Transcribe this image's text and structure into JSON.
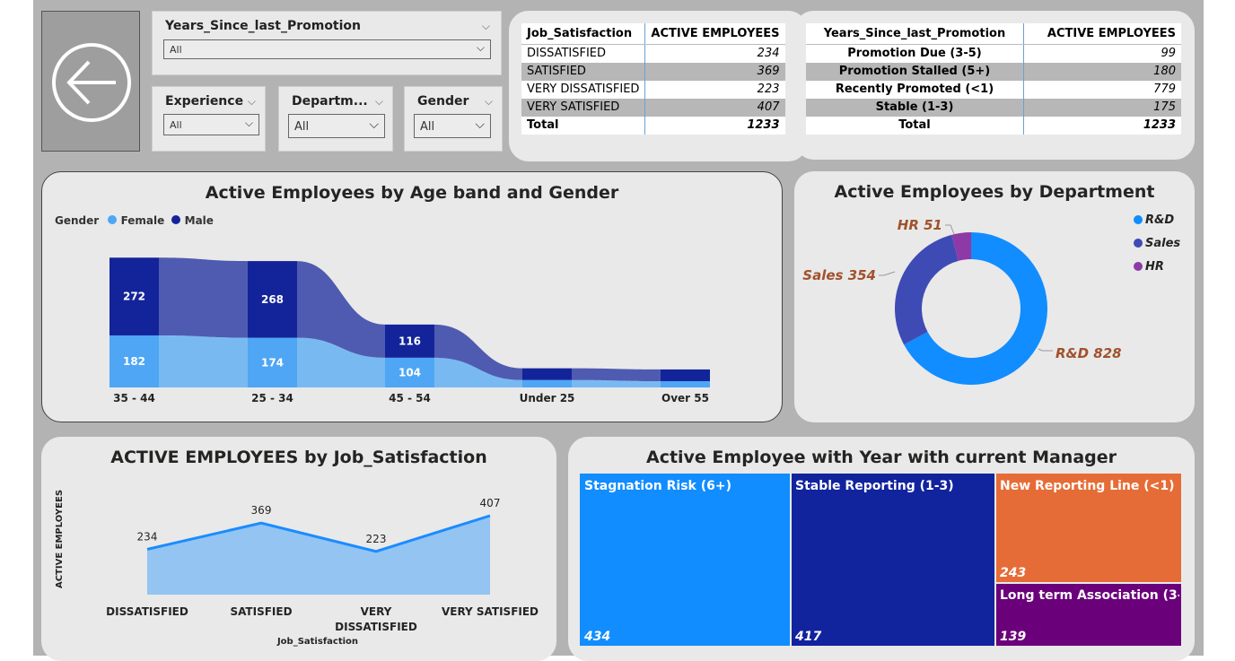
{
  "slicers": {
    "promotion": {
      "title": "Years_Since_last_Promotion",
      "value": "All"
    },
    "experience": {
      "title": "Experience",
      "value": "All"
    },
    "department": {
      "title": "Departm...",
      "value": "All"
    },
    "gender": {
      "title": "Gender",
      "value": "All"
    }
  },
  "icons": {
    "back": "back-arrow-icon",
    "dropdown": "chevron-down-icon"
  },
  "job_table": {
    "headers": [
      "Job_Satisfaction",
      "ACTIVE EMPLOYEES"
    ],
    "rows": [
      {
        "label": "DISSATISFIED",
        "value": "234"
      },
      {
        "label": "SATISFIED",
        "value": "369"
      },
      {
        "label": "VERY DISSATISFIED",
        "value": "223"
      },
      {
        "label": "VERY SATISFIED",
        "value": "407"
      }
    ],
    "total": {
      "label": "Total",
      "value": "1233"
    }
  },
  "promo_table": {
    "headers": [
      "Years_Since_last_Promotion",
      "ACTIVE EMPLOYEES"
    ],
    "rows": [
      {
        "label": "Promotion Due (3-5)",
        "value": "99"
      },
      {
        "label": "Promotion Stalled (5+)",
        "value": "180"
      },
      {
        "label": "Recently Promoted (<1)",
        "value": "779"
      },
      {
        "label": "Stable (1-3)",
        "value": "175"
      }
    ],
    "total": {
      "label": "Total",
      "value": "1233"
    }
  },
  "colors": {
    "female": "#4ea6f5",
    "male": "#13249a",
    "rd": "#118dff",
    "sales": "#3e4bb5",
    "hr": "#8d3aa6",
    "area": "#94c4f2",
    "line": "#1a8cff",
    "tm_stagnation": "#118dff",
    "tm_stable": "#12239e",
    "tm_new": "#e66c37",
    "tm_long": "#6b007b",
    "donut_label": "#a0522d"
  },
  "chart_data": [
    {
      "type": "ribbon",
      "title": "Active Employees by Age band and Gender",
      "legend_title": "Gender",
      "categories": [
        "35 - 44",
        "25 - 34",
        "45 - 54",
        "Under 25",
        "Over 55"
      ],
      "series": [
        {
          "name": "Female",
          "values": [
            182,
            174,
            104,
            26,
            22
          ]
        },
        {
          "name": "Male",
          "values": [
            272,
            268,
            116,
            41,
            41
          ]
        }
      ]
    },
    {
      "type": "pie",
      "title": "Active Employees by Department",
      "legend_position": "top-right",
      "labels": [
        "R&D",
        "Sales",
        "HR"
      ],
      "values": [
        828,
        354,
        51
      ],
      "data_labels": [
        "R&D 828",
        "Sales 354",
        "HR 51"
      ]
    },
    {
      "type": "area",
      "title": "ACTIVE EMPLOYEES by Job_Satisfaction",
      "xlabel": "Job_Satisfaction",
      "ylabel": "ACTIVE EMPLOYEES",
      "categories": [
        "DISSATISFIED",
        "SATISFIED",
        "VERY DISSATISFIED",
        "VERY SATISFIED"
      ],
      "values": [
        234,
        369,
        223,
        407
      ],
      "tick_labels": [
        [
          "DISSATISFIED"
        ],
        [
          "SATISFIED"
        ],
        [
          "VERY",
          "DISSATISFIED"
        ],
        [
          "VERY SATISFIED"
        ]
      ]
    },
    {
      "type": "treemap",
      "title": "Active Employee with Year with current Manager",
      "labels": [
        "Stagnation Risk (6+)",
        "Stable Reporting (1-3)",
        "New Reporting Line (<1)",
        "Long term Association (3-..."
      ],
      "values": [
        434,
        417,
        243,
        139
      ]
    }
  ]
}
